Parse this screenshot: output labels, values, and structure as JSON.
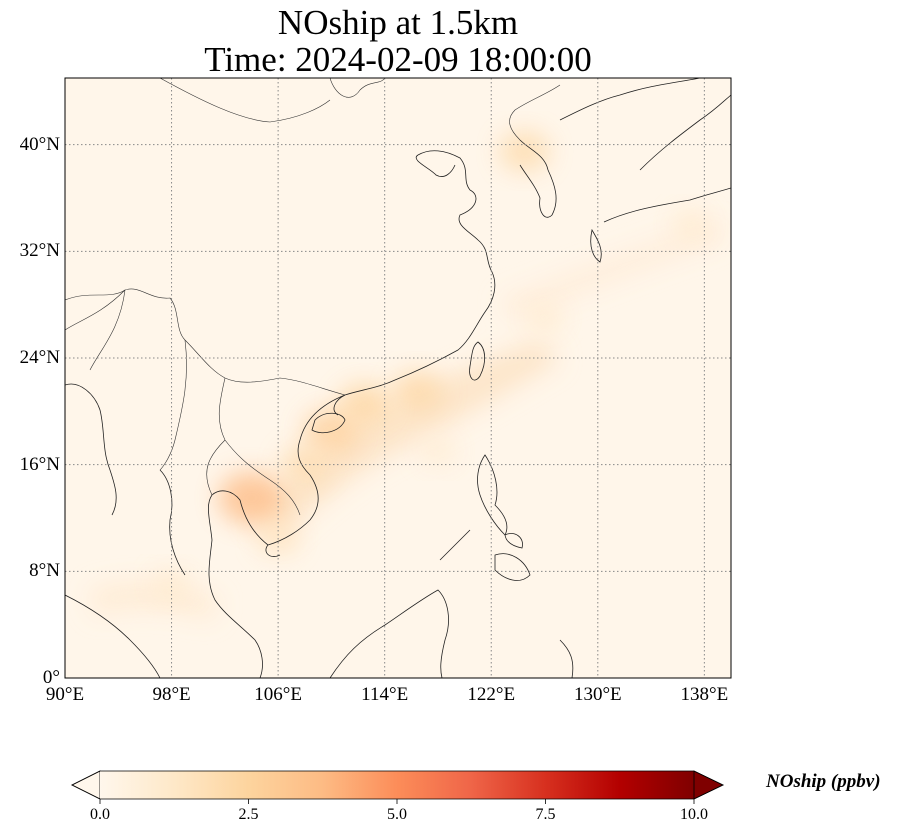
{
  "title": {
    "line1": "NOship at 1.5km",
    "line2": "Time: 2024-02-09 18:00:00"
  },
  "map": {
    "projection": "PlateCarree",
    "lon_range": [
      90,
      140
    ],
    "lat_range": [
      0,
      45
    ],
    "gridlines": "dotted",
    "lon_ticks": [
      {
        "value": 90,
        "label": "90°E"
      },
      {
        "value": 98,
        "label": "98°E"
      },
      {
        "value": 106,
        "label": "106°E"
      },
      {
        "value": 114,
        "label": "114°E"
      },
      {
        "value": 122,
        "label": "122°E"
      },
      {
        "value": 130,
        "label": "130°E"
      },
      {
        "value": 138,
        "label": "138°E"
      }
    ],
    "lat_ticks": [
      {
        "value": 0,
        "label": "0°"
      },
      {
        "value": 8,
        "label": "8°N"
      },
      {
        "value": 16,
        "label": "16°N"
      },
      {
        "value": 24,
        "label": "24°N"
      },
      {
        "value": 32,
        "label": "32°N"
      },
      {
        "value": 40,
        "label": "40°N"
      }
    ],
    "hotspots": [
      {
        "lon": 104,
        "lat": 13.5,
        "value": 3.8
      },
      {
        "lon": 110,
        "lat": 18.5,
        "value": 2.8
      },
      {
        "lon": 112.5,
        "lat": 20.5,
        "value": 2.5
      },
      {
        "lon": 116.5,
        "lat": 21.5,
        "value": 2.3
      },
      {
        "lon": 124.5,
        "lat": 39.5,
        "value": 2.2
      },
      {
        "lon": 108,
        "lat": 16,
        "value": 2.0
      },
      {
        "lon": 106,
        "lat": 10.5,
        "value": 1.5
      },
      {
        "lon": 98,
        "lat": 7,
        "value": 1.0
      },
      {
        "lon": 118,
        "lat": 17,
        "value": 0.9
      },
      {
        "lon": 126,
        "lat": 27,
        "value": 1.0
      },
      {
        "lon": 137,
        "lat": 34,
        "value": 1.0
      }
    ]
  },
  "colorbar": {
    "cmap": "OrRd",
    "vmin": 0,
    "vmax": 10,
    "extend": "both",
    "ticks": [
      "0.0",
      "2.5",
      "5.0",
      "7.5",
      "10.0"
    ],
    "tick_values": [
      0,
      2.5,
      5,
      7.5,
      10
    ],
    "colors": [
      "#fff7ec",
      "#fee8c8",
      "#fdd49e",
      "#fdbb84",
      "#fc8d59",
      "#ef6548",
      "#d7301f",
      "#b30000",
      "#7f0000"
    ],
    "label": "NOship (ppbv)"
  }
}
